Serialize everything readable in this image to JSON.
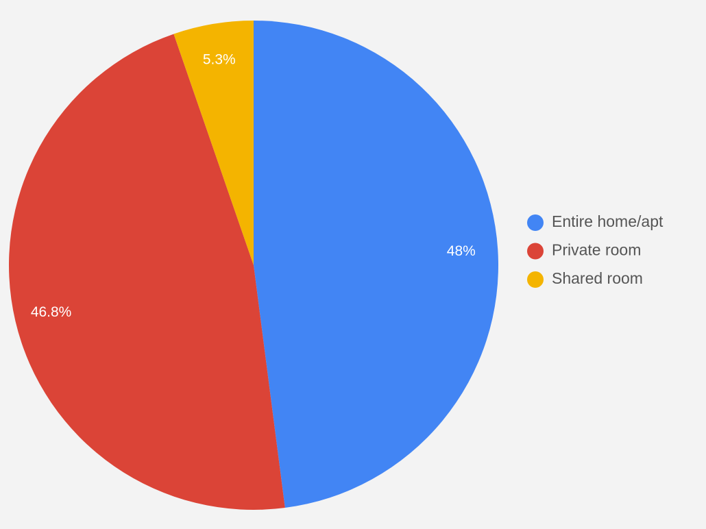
{
  "chart_data": {
    "type": "pie",
    "categories": [
      "Entire home/apt",
      "Private room",
      "Shared room"
    ],
    "values": [
      48,
      46.8,
      5.3
    ],
    "value_labels": [
      "48%",
      "46.8%",
      "5.3%"
    ],
    "colors": [
      "#4285f4",
      "#db4437",
      "#f4b400"
    ],
    "legend": "right"
  }
}
